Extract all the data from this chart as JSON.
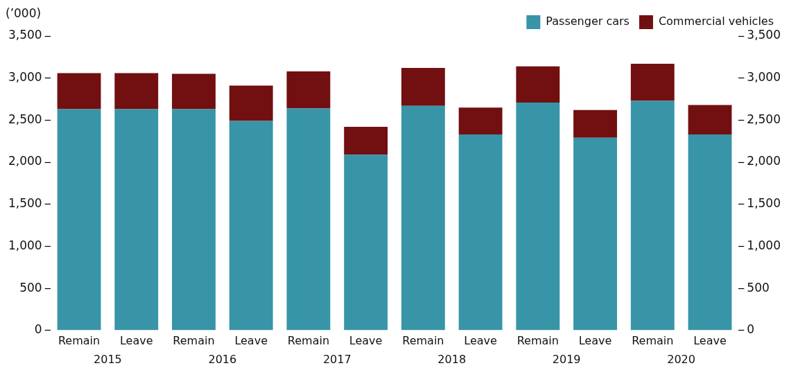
{
  "chart_data": {
    "type": "bar",
    "stacked": true,
    "ylabel": "(’000)",
    "categories": [
      "Remain",
      "Leave",
      "Remain",
      "Leave",
      "Remain",
      "Leave",
      "Remain",
      "Leave",
      "Remain",
      "Leave",
      "Remain",
      "Leave"
    ],
    "annotations": [
      "2015",
      "2016",
      "2017",
      "2018",
      "2019",
      "2020"
    ],
    "series": [
      {
        "name": "Passenger cars",
        "color": "#3795a7",
        "values": [
          2630,
          2630,
          2630,
          2490,
          2640,
          2090,
          2670,
          2330,
          2710,
          2290,
          2730,
          2330
        ]
      },
      {
        "name": "Commercial vehicles",
        "color": "#720f11",
        "values": [
          430,
          430,
          420,
          420,
          440,
          330,
          450,
          320,
          430,
          330,
          440,
          350
        ]
      }
    ],
    "ylim": [
      0,
      3500
    ],
    "yticks": [
      0,
      500,
      {
        "value": 1000,
        "label": "1,000"
      },
      {
        "value": 1500,
        "label": "1,500"
      },
      {
        "value": 2000,
        "label": "2,000"
      },
      {
        "value": 2500,
        "label": "2,500"
      },
      {
        "value": 3000,
        "label": "3,000"
      },
      {
        "value": 3500,
        "label": "3,500"
      }
    ],
    "y2lim": [
      0,
      3500
    ],
    "y2ticks": [
      0,
      500,
      {
        "value": 1000,
        "label": "1,000"
      },
      {
        "value": 1500,
        "label": "1,500"
      },
      {
        "value": 2000,
        "label": "2,000"
      },
      {
        "value": 2500,
        "label": "2,500"
      },
      {
        "value": 3000,
        "label": "3,000"
      },
      {
        "value": 3500,
        "label": "3,500"
      }
    ],
    "grid": false,
    "legend": "top right"
  }
}
